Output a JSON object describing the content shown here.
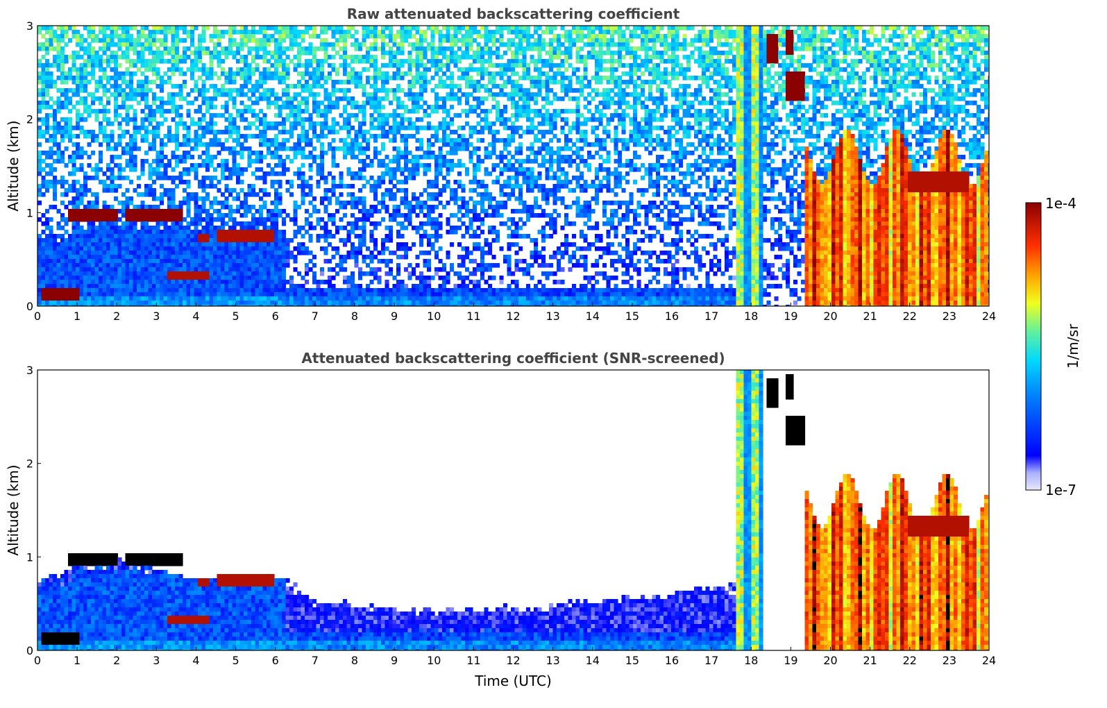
{
  "chart_data": [
    {
      "type": "heatmap",
      "title": "Raw attenuated backscattering coefficient",
      "xlabel": "",
      "ylabel": "Altitude (km)",
      "xlim": [
        0,
        24
      ],
      "ylim": [
        0,
        3
      ],
      "x_ticks": [
        0,
        1,
        2,
        3,
        4,
        5,
        6,
        7,
        8,
        9,
        10,
        11,
        12,
        13,
        14,
        15,
        16,
        17,
        18,
        19,
        20,
        21,
        22,
        23,
        24
      ],
      "y_ticks": [
        0,
        1,
        2,
        3
      ],
      "layers": [
        {
          "name": "",
          "kind": "boundary-layer",
          "segments": [
            {
              "t0": 0.0,
              "t1": 0.9,
              "top": 0.75,
              "level": 0.3
            },
            {
              "t0": 0.9,
              "t1": 6.3,
              "top": 0.9,
              "level": 0.3
            },
            {
              "t0": 6.3,
              "t1": 17.6,
              "top": 0.2,
              "level": 0.28
            }
          ]
        },
        {
          "name": "",
          "kind": "cloud",
          "segments": [
            {
              "t0": 0.05,
              "t1": 1.1,
              "base": 0.08,
              "top": 0.2,
              "level": 1.0
            },
            {
              "t0": 0.75,
              "t1": 2.05,
              "base": 0.9,
              "top": 1.05,
              "level": 1.0
            },
            {
              "t0": 2.2,
              "t1": 3.7,
              "base": 0.9,
              "top": 1.05,
              "level": 1.0
            },
            {
              "t0": 3.3,
              "t1": 4.3,
              "base": 0.28,
              "top": 0.38,
              "level": 0.95
            },
            {
              "t0": 4.0,
              "t1": 4.3,
              "base": 0.7,
              "top": 0.78,
              "level": 0.95
            },
            {
              "t0": 4.5,
              "t1": 6.0,
              "base": 0.7,
              "top": 0.8,
              "level": 0.95
            }
          ]
        },
        {
          "name": "",
          "kind": "cloud",
          "segments": [
            {
              "t0": 17.6,
              "t1": 18.3,
              "base": 0.0,
              "top": 3.0,
              "level": 0.65
            },
            {
              "t0": 18.4,
              "t1": 18.7,
              "base": 2.6,
              "top": 2.9,
              "level": 1.0
            },
            {
              "t0": 18.9,
              "t1": 19.1,
              "base": 2.7,
              "top": 2.95,
              "level": 1.0
            },
            {
              "t0": 18.9,
              "t1": 19.4,
              "base": 2.2,
              "top": 2.5,
              "level": 1.0
            },
            {
              "t0": 19.4,
              "t1": 24.0,
              "base": 0.0,
              "top": 1.6,
              "level": 0.8
            },
            {
              "t0": 22.0,
              "t1": 23.5,
              "base": 1.2,
              "top": 1.45,
              "level": 0.95
            }
          ]
        }
      ]
    },
    {
      "type": "heatmap",
      "title": "Attenuated backscattering coefficient (SNR-screened)",
      "xlabel": "Time (UTC)",
      "ylabel": "Altitude (km)",
      "xlim": [
        0,
        24
      ],
      "ylim": [
        0,
        3
      ],
      "x_ticks": [
        0,
        1,
        2,
        3,
        4,
        5,
        6,
        7,
        8,
        9,
        10,
        11,
        12,
        13,
        14,
        15,
        16,
        17,
        18,
        19,
        20,
        21,
        22,
        23,
        24
      ],
      "y_ticks": [
        0,
        1,
        2,
        3
      ],
      "screened_boundary_layer_top": [
        {
          "t": 0.0,
          "top": 0.75
        },
        {
          "t": 1.0,
          "top": 0.95
        },
        {
          "t": 2.0,
          "top": 1.0
        },
        {
          "t": 4.0,
          "top": 0.75
        },
        {
          "t": 6.3,
          "top": 0.75
        },
        {
          "t": 7.0,
          "top": 0.55
        },
        {
          "t": 9.0,
          "top": 0.45
        },
        {
          "t": 11.0,
          "top": 0.45
        },
        {
          "t": 13.0,
          "top": 0.5
        },
        {
          "t": 15.0,
          "top": 0.6
        },
        {
          "t": 17.0,
          "top": 0.7
        },
        {
          "t": 17.6,
          "top": 0.7
        }
      ]
    }
  ],
  "colorbar": {
    "label": "1/m/sr",
    "max_label": "1e-4",
    "min_label": "1e-7",
    "scale": "log",
    "colormap": "jet",
    "colors": [
      "#e8e8f8",
      "#0000ff",
      "#00c8ff",
      "#40e0a0",
      "#ffff00",
      "#ff8000",
      "#ff0000",
      "#8b0000"
    ],
    "saturated_color": "#000000"
  }
}
